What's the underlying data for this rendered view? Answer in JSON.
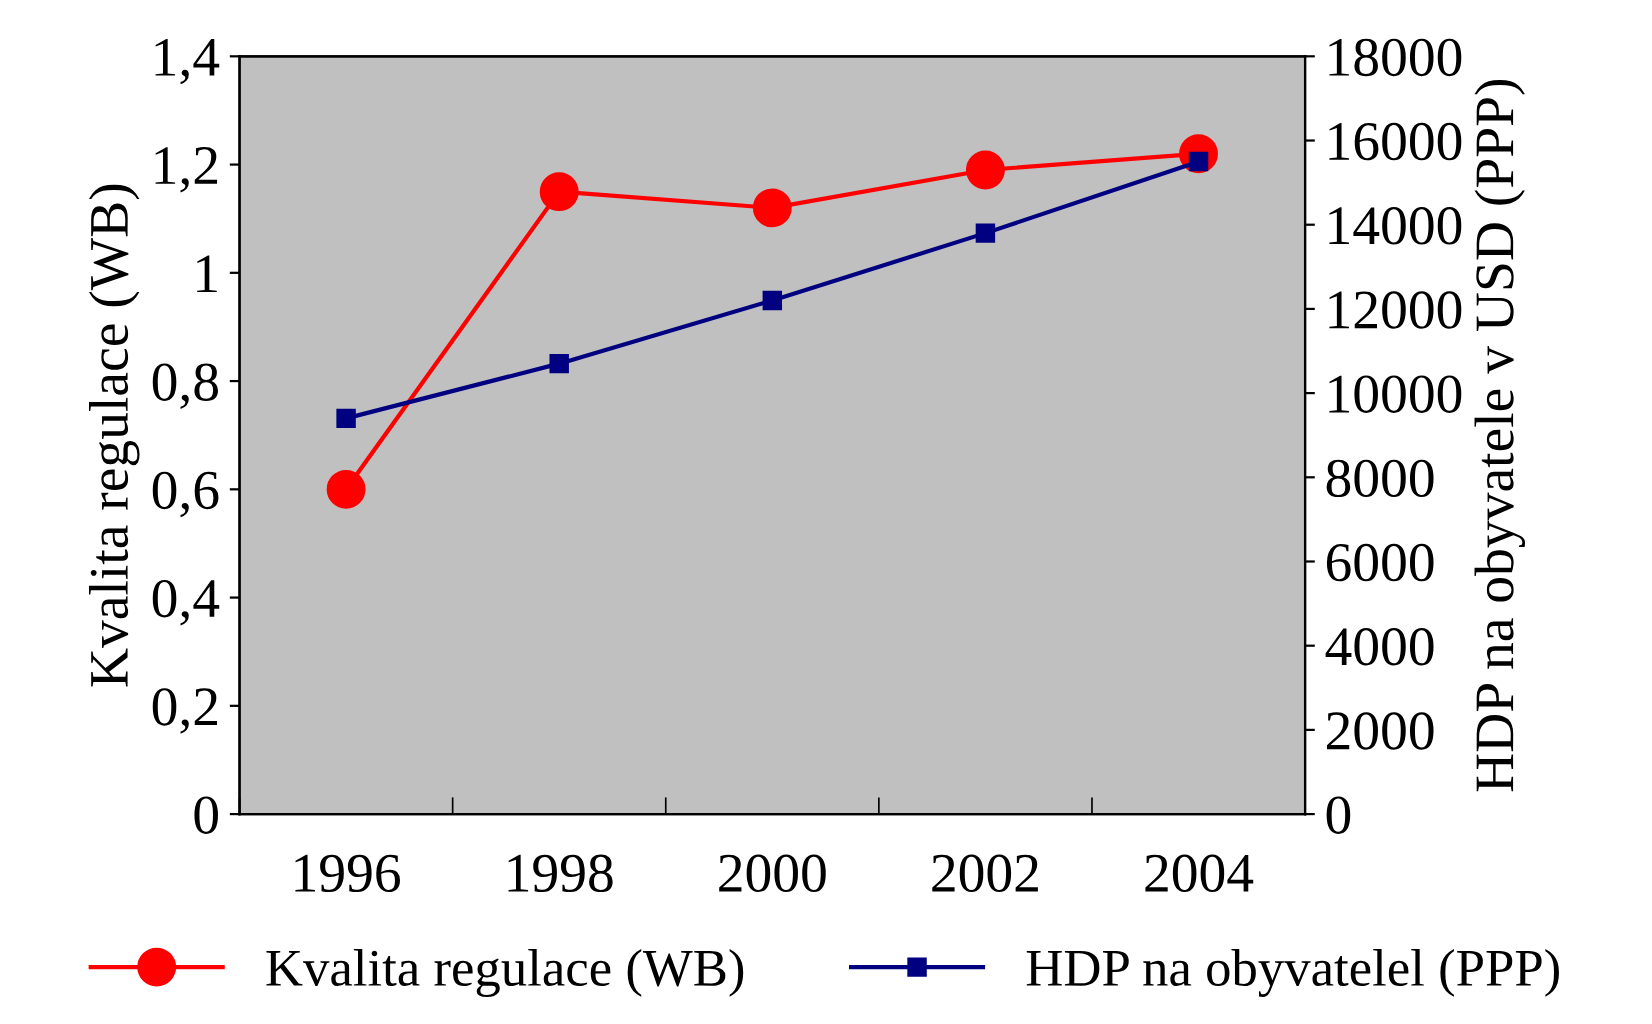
{
  "chart_data": {
    "type": "line",
    "categories": [
      "1996",
      "1998",
      "2000",
      "2002",
      "2004"
    ],
    "ylabel": "Kvalita regulace (WB)",
    "y2label": "HDP na obyvatele v USD (PPP)",
    "series": [
      {
        "name": "Kvalita regulace (WB)",
        "color": "#ff0000",
        "marker": "circle",
        "values": [
          0.6,
          1.15,
          1.12,
          1.19,
          1.22
        ]
      },
      {
        "name": "HDP na obyvatelel (PPP)",
        "color": "#000080",
        "marker": "square",
        "axis": "y2",
        "values": [
          9400,
          10700,
          12200,
          13800,
          15500
        ]
      }
    ],
    "ylim": [
      0,
      1.4
    ],
    "yticks": [
      0,
      {
        "value": 0.2,
        "label": "0,2"
      },
      {
        "value": 0.4,
        "label": "0,4"
      },
      {
        "value": 0.6,
        "label": "0,6"
      },
      {
        "value": 0.8,
        "label": "0,8"
      },
      1,
      {
        "value": 1.2,
        "label": "1,2"
      },
      {
        "value": 1.4,
        "label": "1,4"
      }
    ],
    "y2lim": [
      0,
      18000
    ],
    "y2ticks": [
      0,
      2000,
      4000,
      6000,
      8000,
      10000,
      12000,
      14000,
      16000,
      18000
    ],
    "grid": false,
    "legend": "bottom",
    "line_style": "solid"
  }
}
